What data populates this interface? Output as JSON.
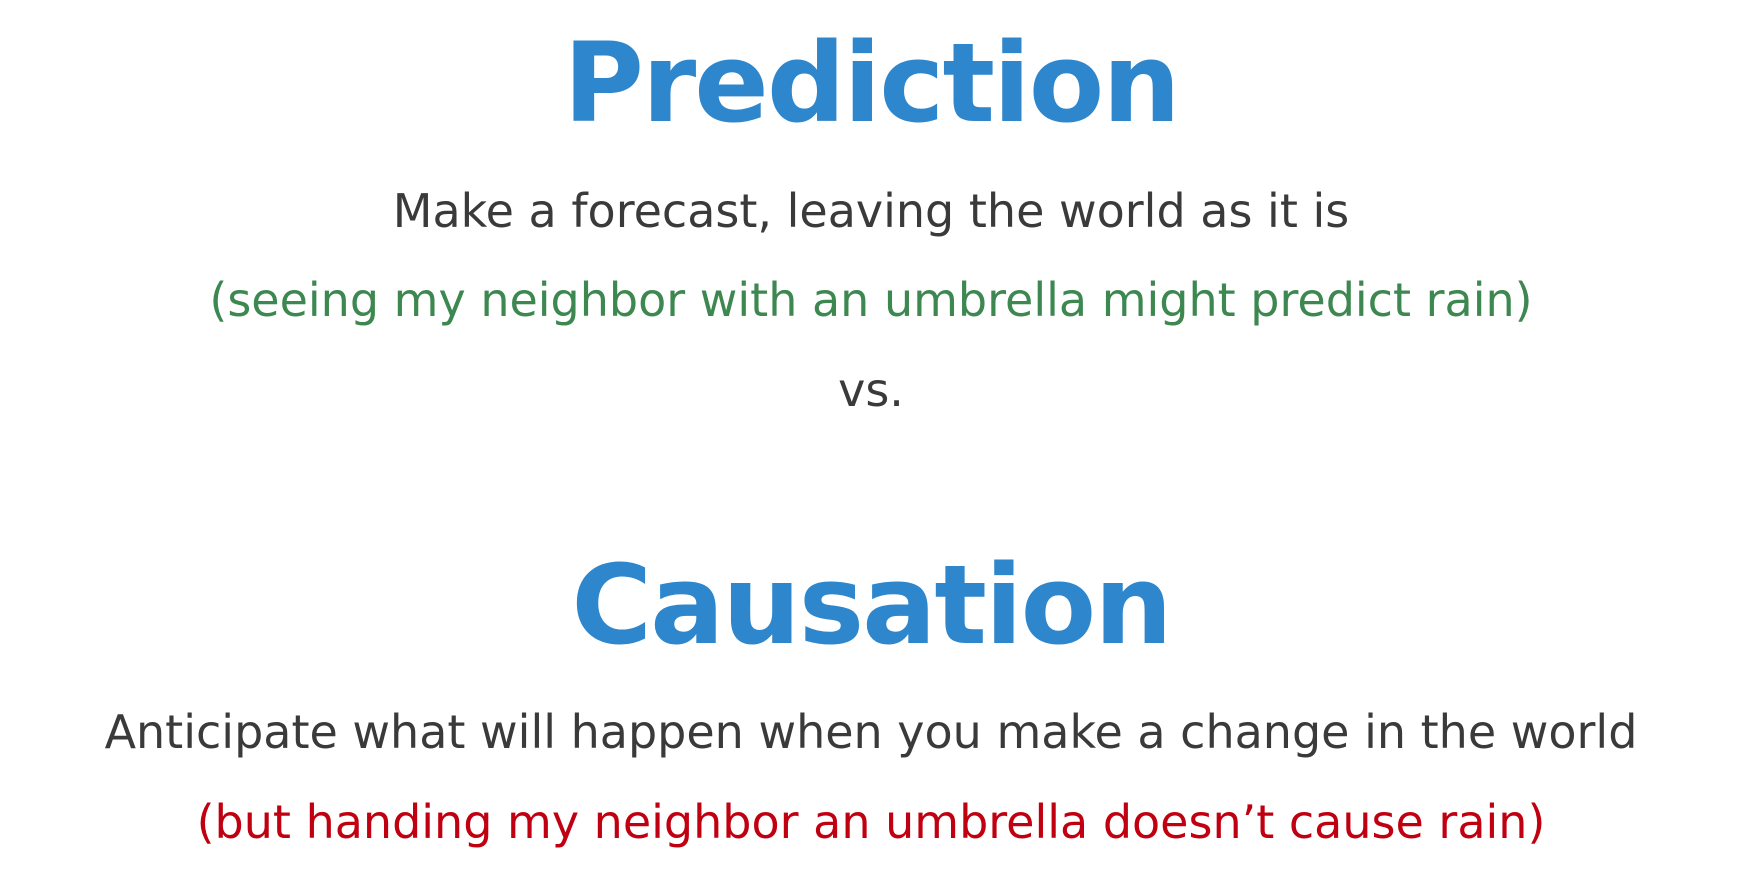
{
  "slide": {
    "prediction": {
      "title": "Prediction",
      "description": "Make a forecast, leaving the world as it is",
      "example": "(seeing my neighbor with an umbrella might predict rain)"
    },
    "separator": "vs.",
    "causation": {
      "title": "Causation",
      "description": "Anticipate what will happen when you make a change in the world",
      "example": "(but handing my neighbor an umbrella doesn’t cause rain)"
    }
  },
  "colors": {
    "heading": "#2E86CC",
    "body": "#3A3A3A",
    "example_positive": "#3D8750",
    "example_negative": "#C00010",
    "background": "#FFFFFF"
  }
}
